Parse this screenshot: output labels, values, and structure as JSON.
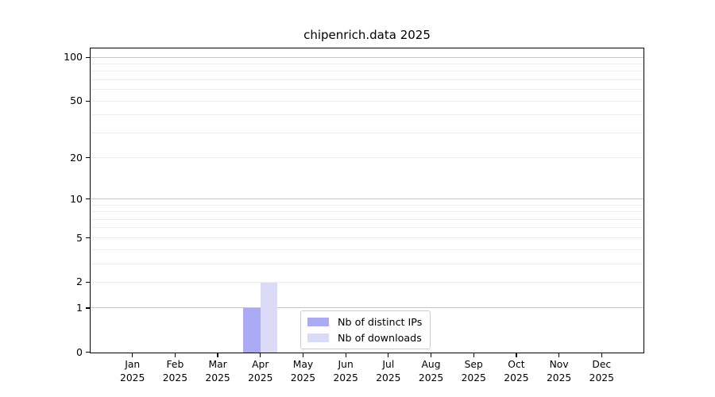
{
  "figure": {
    "title": "chipenrich.data 2025"
  },
  "chart_data": {
    "type": "bar",
    "title": "chipenrich.data 2025",
    "categories": [
      "Jan",
      "Feb",
      "Mar",
      "Apr",
      "May",
      "Jun",
      "Jul",
      "Aug",
      "Sep",
      "Oct",
      "Nov",
      "Dec"
    ],
    "category_year": "2025",
    "series": [
      {
        "name": "Nb of distinct IPs",
        "color": "#aaaaf5",
        "values": [
          0,
          0,
          0,
          1,
          0,
          0,
          0,
          0,
          0,
          0,
          0,
          0
        ]
      },
      {
        "name": "Nb of downloads",
        "color": "#dbdbf8",
        "values": [
          0,
          0,
          0,
          2,
          0,
          0,
          0,
          0,
          0,
          0,
          0,
          0
        ]
      }
    ],
    "xlabel": "",
    "ylabel": "",
    "yscale": "log10(1+x)",
    "ytick_labels": [
      "0",
      "1",
      "2",
      "5",
      "10",
      "20",
      "50",
      "100"
    ],
    "ytick_values": [
      0,
      1,
      2,
      5,
      10,
      20,
      50,
      100
    ],
    "ylim": [
      0,
      115
    ],
    "grid": "horizontal",
    "grid_major_values": [
      1,
      10,
      100
    ],
    "grid_minor_values": [
      2,
      3,
      4,
      5,
      6,
      7,
      8,
      9,
      20,
      30,
      40,
      50,
      60,
      70,
      80,
      90
    ],
    "legend_position": "inside-bottom-center",
    "colors": {
      "grid_major": "#c6c6c6",
      "grid_minor": "#ededed",
      "axis": "#000000",
      "legend_border": "#cccccc",
      "background": "#ffffff"
    }
  }
}
